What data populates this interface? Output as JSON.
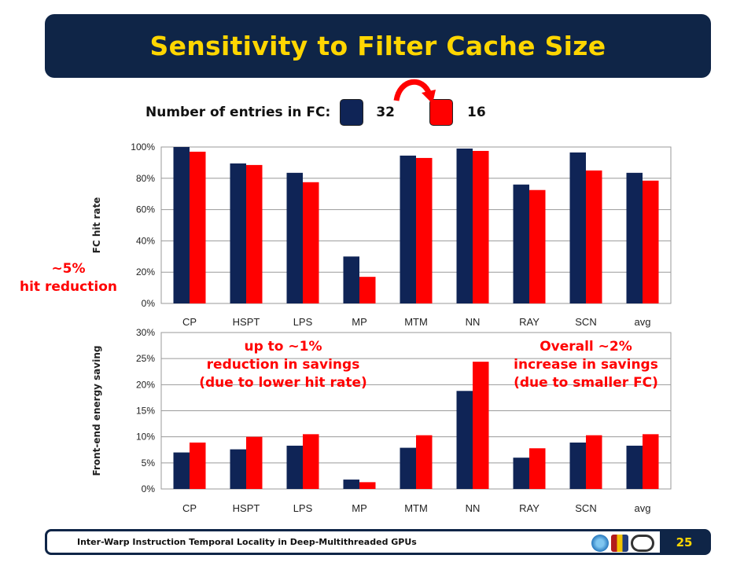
{
  "title": "Sensitivity to Filter Cache Size",
  "legend": {
    "label": "Number of entries in FC:",
    "items": [
      {
        "value": "32",
        "color": "#0f2456"
      },
      {
        "value": "16",
        "color": "#ff0000"
      }
    ],
    "arrow_icon": "curved-arrow-icon"
  },
  "annotations": {
    "hit_reduction": [
      "~5%",
      "hit reduction"
    ],
    "lower_hit_rate": [
      "up to ~1%",
      "reduction in savings",
      "(due to lower hit rate)"
    ],
    "smaller_fc": [
      "Overall ~2%",
      "increase in savings",
      "(due to smaller FC)"
    ]
  },
  "footer": {
    "text": "Inter-Warp Instruction Temporal Locality in Deep-Multithreaded GPUs",
    "page": "25",
    "logos": [
      "university-logo-icon",
      "crest-logo-icon",
      "lab-logo-icon"
    ]
  },
  "chart_data": [
    {
      "type": "bar",
      "ylabel": "FC hit rate",
      "xlabel": "",
      "categories": [
        "CP",
        "HSPT",
        "LPS",
        "MP",
        "MTM",
        "NN",
        "RAY",
        "SCN",
        "avg"
      ],
      "ylim": [
        0,
        100
      ],
      "yticks": [
        0,
        20,
        40,
        60,
        80,
        100
      ],
      "ytick_labels": [
        "0%",
        "20%",
        "40%",
        "60%",
        "80%",
        "100%"
      ],
      "series": [
        {
          "name": "32",
          "color": "#0f2456",
          "values": [
            100,
            89.5,
            83.5,
            30,
            94.5,
            99,
            76,
            96.5,
            83.5
          ]
        },
        {
          "name": "16",
          "color": "#ff0000",
          "values": [
            97,
            88.5,
            77.5,
            17,
            93,
            97.5,
            72.5,
            85,
            78.5
          ]
        }
      ],
      "grid": true,
      "legend": "top"
    },
    {
      "type": "bar",
      "ylabel": "Front-end energy saving",
      "xlabel": "",
      "categories": [
        "CP",
        "HSPT",
        "LPS",
        "MP",
        "MTM",
        "NN",
        "RAY",
        "SCN",
        "avg"
      ],
      "ylim": [
        0,
        30
      ],
      "yticks": [
        0,
        5,
        10,
        15,
        20,
        25,
        30
      ],
      "ytick_labels": [
        "0%",
        "5%",
        "10%",
        "15%",
        "20%",
        "25%",
        "30%"
      ],
      "series": [
        {
          "name": "32",
          "color": "#0f2456",
          "values": [
            7,
            7.6,
            8.3,
            1.8,
            7.9,
            18.8,
            6,
            8.9,
            8.3
          ]
        },
        {
          "name": "16",
          "color": "#ff0000",
          "values": [
            8.9,
            10,
            10.5,
            1.3,
            10.3,
            24.4,
            7.8,
            10.3,
            10.5
          ]
        }
      ],
      "grid": true,
      "legend": "top"
    }
  ]
}
